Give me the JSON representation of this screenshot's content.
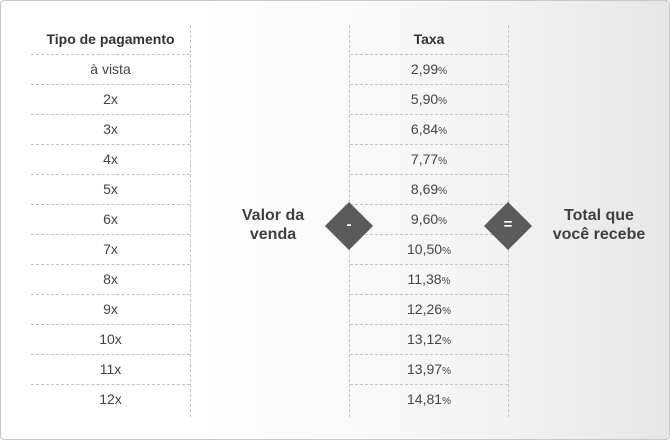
{
  "table": {
    "headers": {
      "payment_type": "Tipo de pagamento",
      "rate": "Taxa"
    },
    "rows": [
      {
        "type": "à vista",
        "rate": "2,99",
        "unit": "%"
      },
      {
        "type": "2x",
        "rate": "5,90",
        "unit": "%"
      },
      {
        "type": "3x",
        "rate": "6,84",
        "unit": "%"
      },
      {
        "type": "4x",
        "rate": "7,77",
        "unit": "%"
      },
      {
        "type": "5x",
        "rate": "8,69",
        "unit": "%"
      },
      {
        "type": "6x",
        "rate": "9,60",
        "unit": "%"
      },
      {
        "type": "7x",
        "rate": "10,50",
        "unit": "%"
      },
      {
        "type": "8x",
        "rate": "11,38",
        "unit": "%"
      },
      {
        "type": "9x",
        "rate": "12,26",
        "unit": "%"
      },
      {
        "type": "10x",
        "rate": "13,12",
        "unit": "%"
      },
      {
        "type": "11x",
        "rate": "13,97",
        "unit": "%"
      },
      {
        "type": "12x",
        "rate": "14,81",
        "unit": "%"
      }
    ]
  },
  "formula": {
    "sale_value_line1": "Valor da",
    "sale_value_line2": "venda",
    "minus_symbol": "-",
    "equals_symbol": "=",
    "total_line1": "Total que",
    "total_line2": "você recebe"
  },
  "colors": {
    "operator_diamond": "#5a5a5a",
    "text": "#404040",
    "divider": "#c4c4c4"
  }
}
